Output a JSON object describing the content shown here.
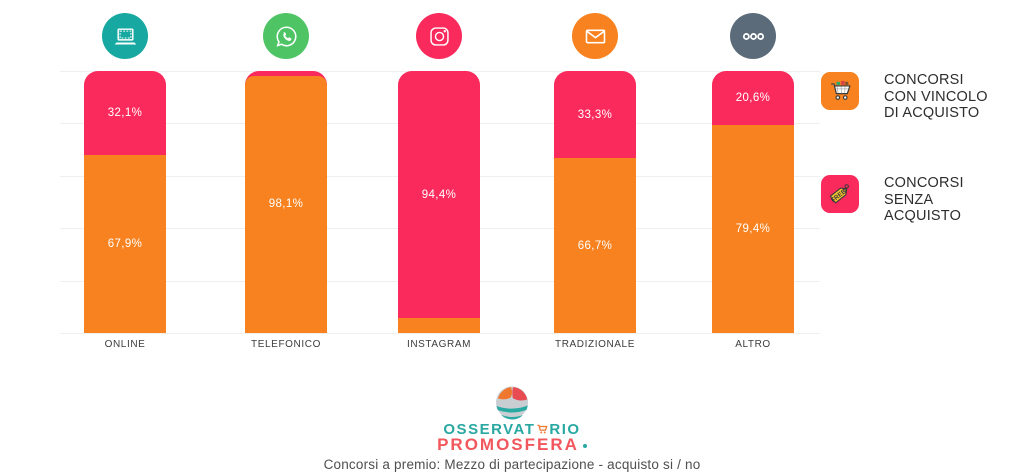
{
  "header_icons": [
    {
      "name": "computer",
      "circle_color": "#16A8A1"
    },
    {
      "name": "whatsapp",
      "circle_color": "#4EC465"
    },
    {
      "name": "instagram",
      "circle_color": "#FB2A5C"
    },
    {
      "name": "email",
      "circle_color": "#F8821F"
    },
    {
      "name": "more-dots",
      "circle_color": "#5C6B7A"
    }
  ],
  "chart_data": {
    "type": "bar",
    "stacked": true,
    "categories": [
      "ONLINE",
      "TELEFONICO",
      "INSTAGRAM",
      "TRADIZIONALE",
      "ALTRO"
    ],
    "series": [
      {
        "name": "CONCORSI CON VINCOLO DI ACQUISTO",
        "color": "#F8821F",
        "values": [
          67.9,
          98.1,
          5.6,
          66.7,
          79.4
        ],
        "labels": [
          "67,9%",
          "98,1%",
          "",
          "66,7%",
          "79,4%"
        ]
      },
      {
        "name": "CONCORSI SENZA ACQUISTO",
        "color": "#FB2A5C",
        "values": [
          32.1,
          1.9,
          94.4,
          33.3,
          20.6
        ],
        "labels": [
          "32,1%",
          "",
          "94,4%",
          "33,3%",
          "20,6%"
        ]
      }
    ],
    "unit": "%",
    "ylim": [
      0,
      100
    ],
    "grid": true,
    "gridline_step_pct": 20,
    "legend_position": "right",
    "value_label_color": "#ffffff"
  },
  "legend": [
    {
      "icon": "shopping-cart",
      "color": "#F8821F",
      "label": "CONCORSI\nCON VINCOLO\nDI ACQUISTO"
    },
    {
      "icon": "free-price-tag",
      "color": "#FB2A5C",
      "label": "CONCORSI\nSENZA\nACQUISTO"
    }
  ],
  "footer": {
    "logo_text_part1": "OSSERVAT",
    "logo_text_part2": "RIO",
    "logo_brand": "PROMOSFERA",
    "caption": "Concorsi a premio: Mezzo di partecipazione - acquisto si / no"
  }
}
